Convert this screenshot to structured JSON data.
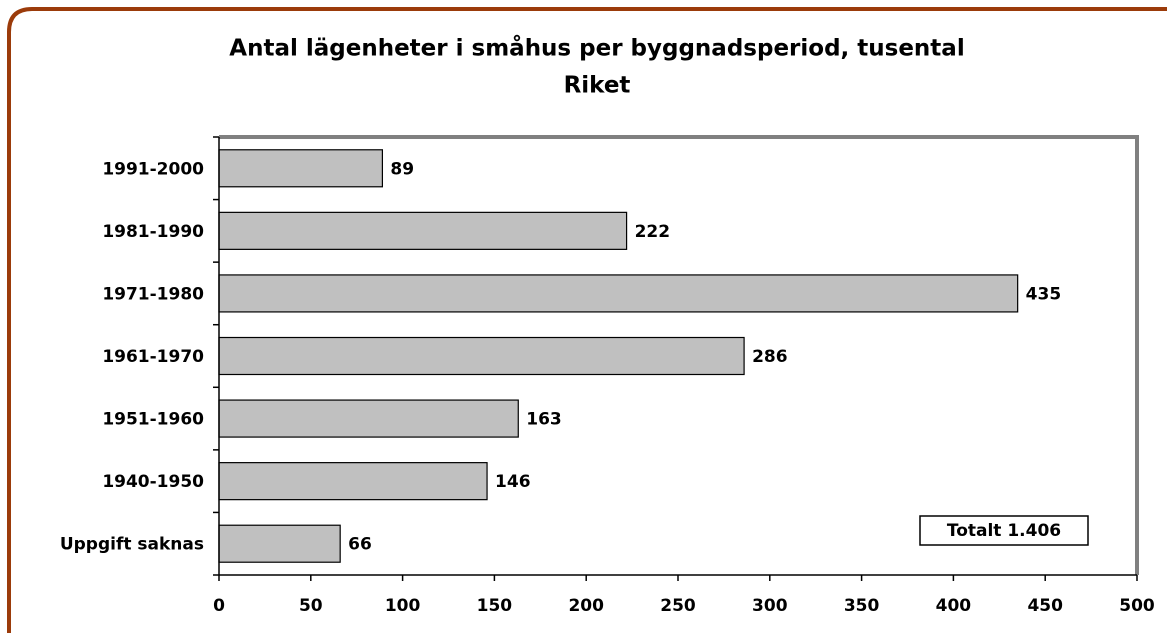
{
  "chart_data": {
    "type": "bar",
    "orientation": "horizontal",
    "title": "Antal lägenheter i småhus per byggnadsperiod, tusental",
    "subtitle": "Riket",
    "categories": [
      "1991-2000",
      "1981-1990",
      "1971-1980",
      "1961-1970",
      "1951-1960",
      "1940-1950",
      "Uppgift saknas"
    ],
    "values": [
      89,
      222,
      435,
      286,
      163,
      146,
      66
    ],
    "color": "#c0c0c0",
    "xlim": [
      0,
      500
    ],
    "xticks": [
      0,
      50,
      100,
      150,
      200,
      250,
      300,
      350,
      400,
      450,
      500
    ],
    "annotation": "Totalt 1.406"
  }
}
